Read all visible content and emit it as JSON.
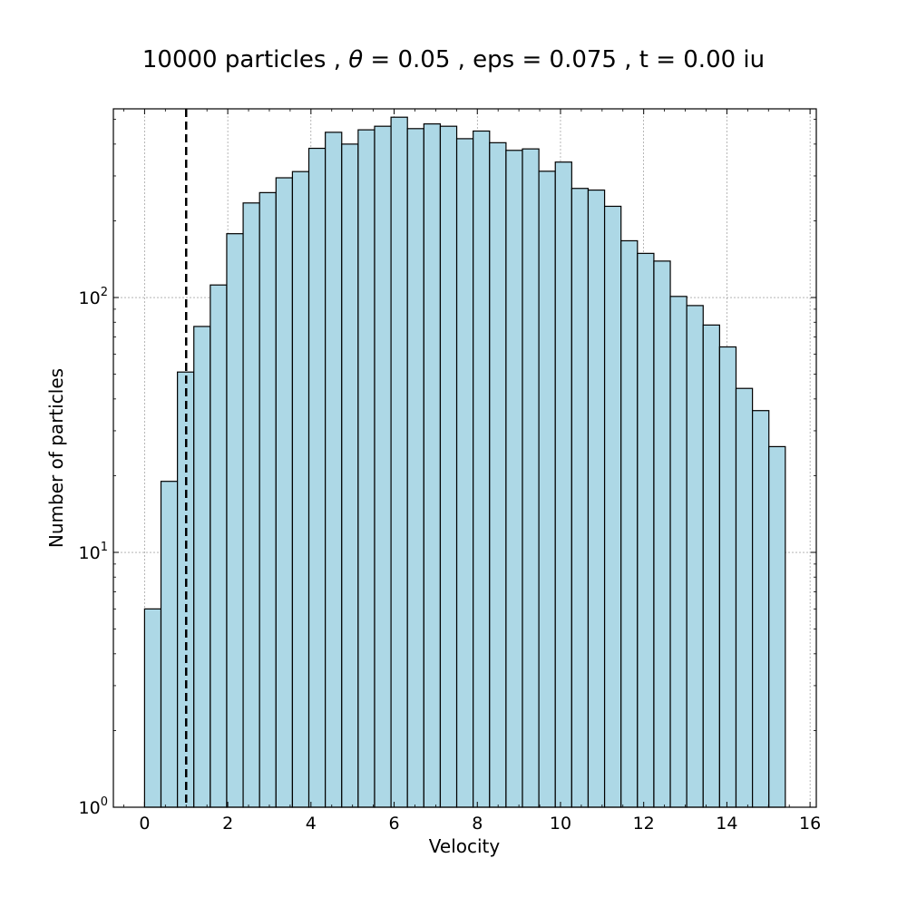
{
  "chart_data": {
    "type": "bar",
    "title": "10000 particles , θ = 0.05 , eps = 0.075 , t = 0.00 iu",
    "title_parts": {
      "prefix": "10000 particles , ",
      "symbol": "θ",
      "suffix": " = 0.05 , eps = 0.075 , t = 0.00 iu"
    },
    "xlabel": "Velocity",
    "ylabel": "Number of particles",
    "yscale": "log",
    "xlim": [
      -0.75,
      16.15
    ],
    "ylim": [
      1,
      550
    ],
    "xticks": [
      0,
      2,
      4,
      6,
      8,
      10,
      12,
      14,
      16
    ],
    "yticks": [
      {
        "base": "10",
        "exp": "0",
        "value": 1
      },
      {
        "base": "10",
        "exp": "1",
        "value": 10
      },
      {
        "base": "10",
        "exp": "2",
        "value": 100
      }
    ],
    "grid": true,
    "bar_color": "#add8e6",
    "edge_color": "#000000",
    "reference_line": {
      "x": 1.0,
      "style": "dashed",
      "color": "#000000"
    },
    "bin_edges": [
      0.0,
      0.395,
      0.79,
      1.185,
      1.58,
      1.975,
      2.37,
      2.765,
      3.16,
      3.555,
      3.95,
      4.345,
      4.74,
      5.135,
      5.53,
      5.925,
      6.32,
      6.715,
      7.11,
      7.505,
      7.9,
      8.295,
      8.69,
      9.085,
      9.48,
      9.875,
      10.27,
      10.665,
      11.06,
      11.455,
      11.85,
      12.245,
      12.64,
      13.035,
      13.43,
      13.825,
      14.22,
      14.615,
      15.01,
      15.405
    ],
    "values": [
      6,
      19,
      51,
      77,
      112,
      178,
      235,
      258,
      295,
      312,
      385,
      445,
      400,
      455,
      470,
      510,
      460,
      480,
      470,
      420,
      450,
      405,
      378,
      383,
      313,
      340,
      268,
      264,
      228,
      167,
      149,
      139,
      101,
      93,
      78,
      64,
      44,
      36,
      26
    ]
  }
}
